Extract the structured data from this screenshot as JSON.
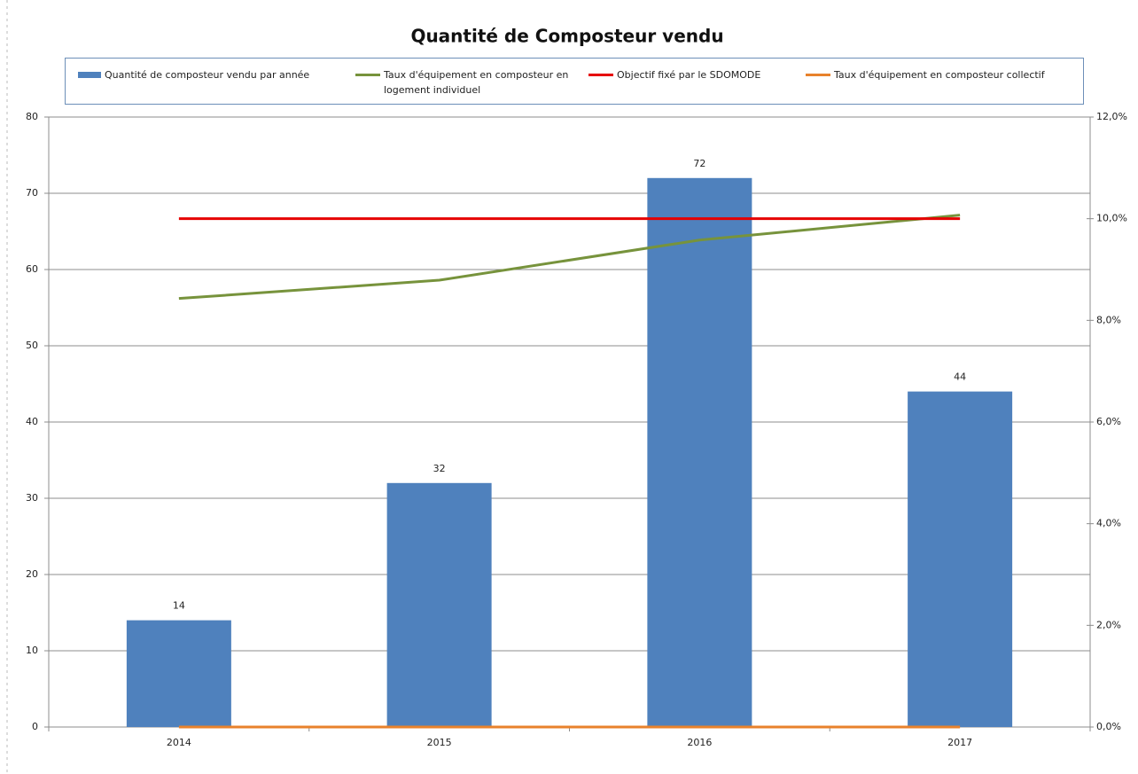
{
  "chart_data": {
    "type": "bar",
    "title": "Quantité de Composteur vendu",
    "categories": [
      "2014",
      "2015",
      "2016",
      "2017"
    ],
    "series": [
      {
        "name": "Quantité de composteur vendu par année",
        "type": "bar",
        "color": "#4f81bd",
        "values": [
          14,
          32,
          72,
          44
        ]
      },
      {
        "name": "Taux d'équipement en composteur en logement individuel",
        "type": "line",
        "axis": "y2",
        "color": "#77933c",
        "values": [
          8.43,
          8.79,
          9.58,
          10.07
        ]
      },
      {
        "name": "Objectif fixé par le SDOMODE",
        "type": "line",
        "axis": "y2",
        "color": "#e60000",
        "values": [
          10,
          10,
          10,
          10
        ]
      },
      {
        "name": "Taux d'équipement en composteur collectif",
        "type": "line",
        "axis": "y2",
        "color": "#e8822c",
        "values": [
          0,
          0,
          0,
          0
        ]
      }
    ],
    "ylim": [
      0,
      80
    ],
    "yticks": [
      0,
      10,
      20,
      30,
      40,
      50,
      60,
      70,
      80
    ],
    "y2lim": [
      0,
      12
    ],
    "y2ticks": [
      {
        "value": 0,
        "label": "0,0%"
      },
      {
        "value": 2,
        "label": "2,0%"
      },
      {
        "value": 4,
        "label": "4,0%"
      },
      {
        "value": 6,
        "label": "6,0%"
      },
      {
        "value": 8,
        "label": "8,0%"
      },
      {
        "value": 10,
        "label": "10,0%"
      },
      {
        "value": 12,
        "label": "12,0%"
      }
    ],
    "grid": true,
    "legend": "top"
  }
}
